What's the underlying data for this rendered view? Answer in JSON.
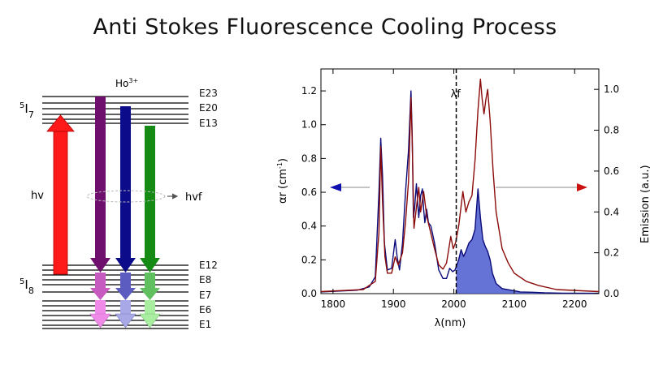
{
  "title": "Anti Stokes Fluorescence Cooling Process",
  "energy_diagram": {
    "ion": "Ho",
    "ion_charge": "3+",
    "upper_manifold": {
      "prefix": "5",
      "symbol": "I",
      "subscript": "7"
    },
    "lower_manifold": {
      "prefix": "5",
      "symbol": "I",
      "subscript": "8"
    },
    "level_labels": [
      {
        "id": "E23",
        "text": "E23"
      },
      {
        "id": "E20",
        "text": "E20"
      },
      {
        "id": "E13",
        "text": "E13"
      },
      {
        "id": "E12",
        "text": "E12"
      },
      {
        "id": "E8",
        "text": "E8"
      },
      {
        "id": "E7",
        "text": "E7"
      },
      {
        "id": "E6",
        "text": "E6"
      },
      {
        "id": "E1",
        "text": "E1"
      }
    ],
    "pump_label": "hv",
    "emission_label": "hvf",
    "arrow_colors": {
      "pump": "#ff1a1a",
      "from_E23": "#6e0f6e",
      "from_E20": "#0c0c8a",
      "from_E13": "#158a15",
      "tip_E23": "#f08ae8",
      "tip_E20": "#a8a8e6",
      "tip_E13": "#a8eda0"
    }
  },
  "chart_data": {
    "type": "line",
    "xlabel": "λ(nm)",
    "ylabel_left": "αr (cm",
    "ylabel_left_sup": "-1",
    "ylabel_left_end": ")",
    "ylabel_right": "Emission (a.u.)",
    "xlim": [
      1780,
      2240
    ],
    "ylim_left": [
      0,
      1.33
    ],
    "ylim_right": [
      0,
      1.1
    ],
    "xticks": [
      "1800",
      "1900",
      "2000",
      "2100",
      "2200"
    ],
    "yticks_left": [
      "0.0",
      "0.2",
      "0.4",
      "0.6",
      "0.8",
      "1.0",
      "1.2"
    ],
    "yticks_right": [
      "0.0",
      "0.2",
      "0.4",
      "0.6",
      "0.8",
      "1.0"
    ],
    "fluorescence_marker": {
      "label": "λf",
      "x": 2004
    },
    "series": [
      {
        "color": "#0a0a7a",
        "axis": "left",
        "x": [
          1780,
          1840,
          1860,
          1870,
          1876,
          1879,
          1882,
          1885,
          1890,
          1897,
          1903,
          1906,
          1910,
          1915,
          1920,
          1925,
          1929,
          1931,
          1933,
          1935,
          1938,
          1942,
          1945,
          1948,
          1950,
          1952,
          1955,
          1958,
          1962,
          1968,
          1975,
          1982,
          1988,
          1993,
          1998,
          2002,
          2004,
          2008,
          2012,
          2016,
          2020,
          2025,
          2030,
          2035,
          2040,
          2044,
          2048,
          2052,
          2056,
          2060,
          2064,
          2070,
          2080,
          2095,
          2110,
          2130,
          2150,
          2180,
          2240
        ],
        "values": [
          0.01,
          0.02,
          0.04,
          0.1,
          0.6,
          0.92,
          0.7,
          0.3,
          0.14,
          0.15,
          0.32,
          0.22,
          0.14,
          0.3,
          0.6,
          0.85,
          1.2,
          0.95,
          0.45,
          0.5,
          0.65,
          0.45,
          0.58,
          0.62,
          0.5,
          0.42,
          0.5,
          0.42,
          0.4,
          0.3,
          0.14,
          0.09,
          0.09,
          0.15,
          0.13,
          0.14,
          0.16,
          0.2,
          0.26,
          0.22,
          0.25,
          0.3,
          0.32,
          0.38,
          0.62,
          0.45,
          0.32,
          0.28,
          0.25,
          0.2,
          0.12,
          0.06,
          0.03,
          0.02,
          0.01,
          0.008,
          0.005,
          0.003,
          0.002
        ]
      },
      {
        "color": "#8b0a0a",
        "axis": "right",
        "x": [
          1780,
          1850,
          1870,
          1876,
          1879,
          1882,
          1886,
          1890,
          1897,
          1903,
          1908,
          1915,
          1920,
          1925,
          1929,
          1931,
          1934,
          1938,
          1942,
          1945,
          1950,
          1955,
          1960,
          1968,
          1975,
          1982,
          1988,
          1995,
          1999,
          2003,
          2008,
          2015,
          2020,
          2025,
          2030,
          2035,
          2040,
          2044,
          2047,
          2050,
          2053,
          2056,
          2060,
          2065,
          2070,
          2080,
          2090,
          2100,
          2120,
          2140,
          2170,
          2240
        ],
        "values": [
          0.01,
          0.02,
          0.06,
          0.3,
          0.72,
          0.45,
          0.18,
          0.1,
          0.1,
          0.18,
          0.14,
          0.2,
          0.35,
          0.55,
          0.96,
          0.75,
          0.32,
          0.42,
          0.52,
          0.4,
          0.5,
          0.38,
          0.32,
          0.22,
          0.14,
          0.12,
          0.15,
          0.28,
          0.22,
          0.25,
          0.33,
          0.5,
          0.4,
          0.45,
          0.48,
          0.65,
          0.9,
          1.05,
          0.95,
          0.88,
          0.95,
          1.0,
          0.85,
          0.6,
          0.4,
          0.22,
          0.15,
          0.1,
          0.06,
          0.04,
          0.02,
          0.01
        ]
      }
    ],
    "fill": {
      "color": "#4a5ad0",
      "from_x": 2004,
      "series_index": 0
    },
    "arrows": {
      "left_color": "#1010b0",
      "right_color": "#cc1010",
      "line_color": "#888888"
    }
  }
}
